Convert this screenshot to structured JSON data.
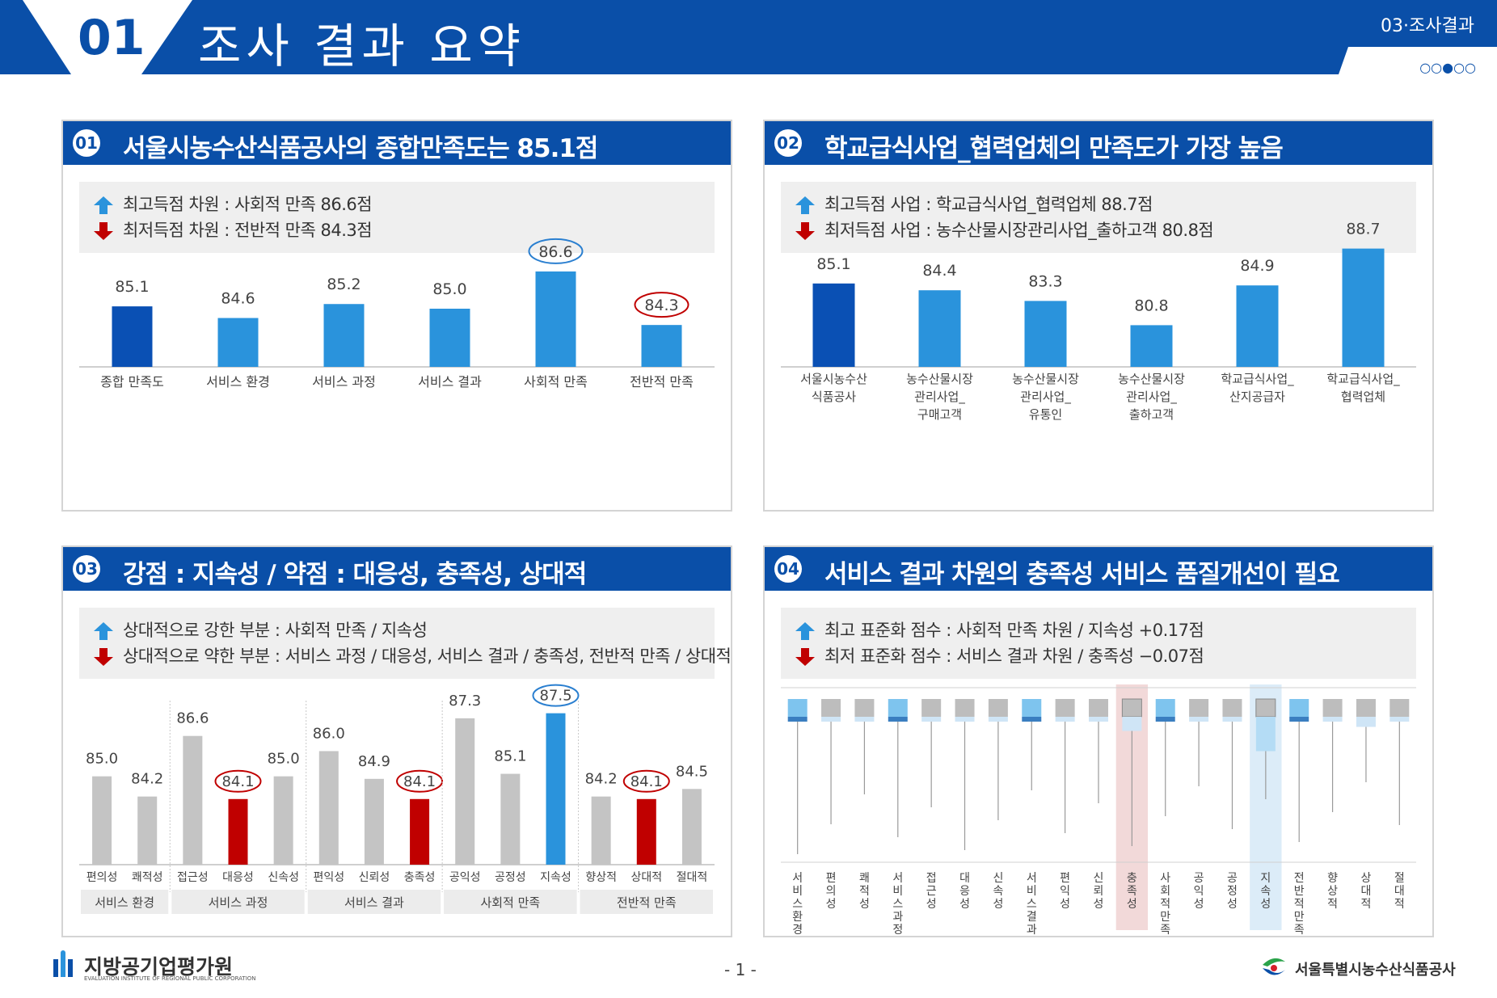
{
  "header": {
    "number": "01",
    "title": "조사 결과 요약",
    "section": "03·조사결과",
    "page_dots": "○○●○○"
  },
  "colors": {
    "brand": "#0a4fa8",
    "bar_main": "#0a50b4",
    "bar": "#2a93dc",
    "bar_gray": "#c4c4c4",
    "bar_red": "#c00000",
    "up": "#2a93dc",
    "down": "#c00000",
    "circle_blue": "#2a7fd0",
    "circle_red": "#c00000"
  },
  "panels": {
    "p1": {
      "num": "01",
      "title": "서울시농수산식품공사의 종합만족도는 85.1점",
      "summary_high": "최고득점 차원 : 사회적 만족 86.6점",
      "summary_low": "최저득점 차원 : 전반적 만족 84.3점"
    },
    "p2": {
      "num": "02",
      "title": "학교급식사업_협력업체의 만족도가 가장 높음",
      "summary_high": "최고득점 사업 : 학교급식사업_협력업체 88.7점",
      "summary_low": "최저득점 사업 : 농수산물시장관리사업_출하고객 80.8점"
    },
    "p3": {
      "num": "03",
      "title": "강점 : 지속성 /  약점 : 대응성, 충족성, 상대적",
      "summary_high": "상대적으로 강한 부분 : 사회적 만족 / 지속성",
      "summary_low": "상대적으로 약한 부분 : 서비스 과정 / 대응성, 서비스 결과 / 충족성, 전반적 만족 / 상대적"
    },
    "p4": {
      "num": "04",
      "title": "서비스 결과 차원의 충족성 서비스 품질개선이 필요",
      "summary_high": "최고 표준화 점수 : 사회적 만족 차원 / 지속성  +0.17점",
      "summary_low": "최저 표준화 점수 : 서비스 결과 차원 / 충족성  −0.07점"
    }
  },
  "chart_data": [
    {
      "id": "dimension_scores",
      "type": "bar",
      "categories": [
        "종합 만족도",
        "서비스 환경",
        "서비스 과정",
        "서비스 결과",
        "사회적 만족",
        "전반적 만족"
      ],
      "values": [
        85.1,
        84.6,
        85.2,
        85.0,
        86.6,
        84.3
      ],
      "highlight": [
        "main",
        "normal",
        "normal",
        "normal",
        "max",
        "min"
      ],
      "ylim": [
        82.5,
        87.5
      ]
    },
    {
      "id": "business_scores",
      "type": "bar",
      "categories": [
        [
          "서울시농수산",
          "식품공사"
        ],
        [
          "농수산물시장",
          "관리사업_",
          "구매고객"
        ],
        [
          "농수산물시장",
          "관리사업_",
          "유통인"
        ],
        [
          "농수산물시장",
          "관리사업_",
          "출하고객"
        ],
        [
          "학교급식사업_",
          "산지공급자"
        ],
        [
          "학교급식사업_",
          "협력업체"
        ]
      ],
      "values": [
        85.1,
        84.4,
        83.3,
        80.8,
        84.9,
        88.7
      ],
      "highlight": [
        "main",
        "normal",
        "normal",
        "normal",
        "normal",
        "normal"
      ],
      "ylim": [
        76.5,
        89.5
      ]
    },
    {
      "id": "attribute_scores",
      "type": "bar",
      "groups": [
        {
          "name": "서비스 환경",
          "items": [
            {
              "label": "편의성",
              "value": 85.0,
              "mark": "none"
            },
            {
              "label": "쾌적성",
              "value": 84.2,
              "mark": "none"
            }
          ]
        },
        {
          "name": "서비스 과정",
          "items": [
            {
              "label": "접근성",
              "value": 86.6,
              "mark": "none"
            },
            {
              "label": "대응성",
              "value": 84.1,
              "mark": "low"
            },
            {
              "label": "신속성",
              "value": 85.0,
              "mark": "none"
            }
          ]
        },
        {
          "name": "서비스 결과",
          "items": [
            {
              "label": "편익성",
              "value": 86.0,
              "mark": "none"
            },
            {
              "label": "신뢰성",
              "value": 84.9,
              "mark": "none"
            },
            {
              "label": "충족성",
              "value": 84.1,
              "mark": "low"
            }
          ]
        },
        {
          "name": "사회적 만족",
          "items": [
            {
              "label": "공익성",
              "value": 87.3,
              "mark": "none"
            },
            {
              "label": "공정성",
              "value": 85.1,
              "mark": "none"
            },
            {
              "label": "지속성",
              "value": 87.5,
              "mark": "high"
            }
          ]
        },
        {
          "name": "전반적 만족",
          "items": [
            {
              "label": "향상적",
              "value": 84.2,
              "mark": "none"
            },
            {
              "label": "상대적",
              "value": 84.1,
              "mark": "low"
            },
            {
              "label": "절대적",
              "value": 84.5,
              "mark": "none"
            }
          ]
        }
      ],
      "ylim": [
        81.5,
        88.0
      ]
    },
    {
      "id": "standardized_scores",
      "type": "bar",
      "categories": [
        "서비스환경",
        "편의성",
        "쾌적성",
        "서비스과정",
        "접근성",
        "대응성",
        "신속성",
        "서비스결과",
        "편익성",
        "신뢰성",
        "충족성",
        "사회적만족",
        "공익성",
        "공정성",
        "지속성",
        "전반적만족",
        "향상적",
        "상대적",
        "절대적"
      ],
      "values": [
        0.02,
        0.02,
        0.02,
        0.01,
        0.0,
        0.01,
        0.0,
        0.01,
        0.0,
        0.0,
        -0.07,
        0.0,
        0.0,
        0.0,
        0.17,
        0.01,
        0.02,
        0.05,
        0.0
      ],
      "highlight_columns": {
        "low": "충족성",
        "high": "지속성"
      }
    }
  ]
}
